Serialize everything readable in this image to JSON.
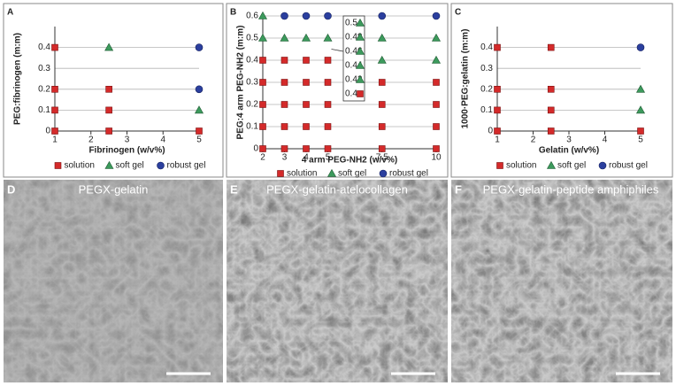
{
  "chart_data": [
    {
      "type": "scatter",
      "panel": "A",
      "x_label": "Fibrinogen (w/v%)",
      "y_label": "PEG:fibrinogen (m:m)",
      "xlim": [
        1,
        5
      ],
      "xticks": [
        1,
        2,
        3,
        4,
        5
      ],
      "ylim": [
        0,
        0.5
      ],
      "yticks": [
        0,
        0.1,
        0.2,
        0.3,
        0.4
      ],
      "grid": true,
      "series": [
        {
          "name": "solution",
          "color": "#d42a2a",
          "marker": "square",
          "x": [
            1,
            1,
            1,
            1,
            2.5,
            2.5,
            2.5,
            5
          ],
          "values": [
            0.4,
            0.2,
            0.1,
            0,
            0.2,
            0.1,
            0,
            0
          ]
        },
        {
          "name": "soft gel",
          "color": "#3c9a5c",
          "marker": "triangle",
          "x": [
            2.5,
            5
          ],
          "values": [
            0.4,
            0.1
          ]
        },
        {
          "name": "robust gel",
          "color": "#2b3f9e",
          "marker": "circle",
          "x": [
            5,
            5
          ],
          "values": [
            0.4,
            0.2
          ]
        }
      ]
    },
    {
      "type": "scatter",
      "panel": "B",
      "x_label": "4 arm PEG-NH2 (w/v%)",
      "y_label": "PEG:4 arm PEG-NH2 (m:m)",
      "xlim": [
        2,
        10
      ],
      "xticks": [
        2,
        3,
        4,
        5,
        7.5,
        10
      ],
      "ylim": [
        0,
        0.6
      ],
      "yticks": [
        0,
        0.1,
        0.2,
        0.3,
        0.4,
        0.5,
        0.6
      ],
      "grid": true,
      "series": [
        {
          "name": "solution",
          "color": "#d42a2a",
          "marker": "square",
          "x": [
            2,
            3,
            4,
            5,
            2,
            3,
            4,
            5,
            7.5,
            10,
            2,
            3,
            4,
            5,
            7.5,
            10,
            2,
            3,
            4,
            5,
            7.5,
            10,
            2,
            3,
            4,
            5,
            7.5,
            10
          ],
          "values": [
            0.4,
            0.4,
            0.4,
            0.4,
            0.3,
            0.3,
            0.3,
            0.3,
            0.3,
            0.3,
            0.2,
            0.2,
            0.2,
            0.2,
            0.2,
            0.2,
            0.1,
            0.1,
            0.1,
            0.1,
            0.1,
            0.1,
            0,
            0,
            0,
            0,
            0,
            0
          ]
        },
        {
          "name": "soft gel",
          "color": "#3c9a5c",
          "marker": "triangle",
          "x": [
            2,
            2,
            3,
            4,
            5,
            7.5,
            10,
            7.5,
            10
          ],
          "values": [
            0.6,
            0.5,
            0.5,
            0.5,
            0.5,
            0.5,
            0.5,
            0.4,
            0.4
          ]
        },
        {
          "name": "robust gel",
          "color": "#2b3f9e",
          "marker": "circle",
          "x": [
            3,
            4,
            5,
            7.5,
            10
          ],
          "values": [
            0.6,
            0.6,
            0.6,
            0.6,
            0.6
          ]
        }
      ],
      "inset": {
        "ylim": [
          0.39,
          0.51
        ],
        "yticks": [
          0.4,
          0.42,
          0.44,
          0.46,
          0.48,
          0.5
        ],
        "solution": [
          0.4
        ],
        "soft_gel": [
          0.42,
          0.44,
          0.46,
          0.48,
          0.5
        ]
      }
    },
    {
      "type": "scatter",
      "panel": "C",
      "x_label": "Gelatin (w/v%)",
      "y_label": "1000·PEG:gelatin (m:m)",
      "xlim": [
        1,
        5
      ],
      "xticks": [
        1,
        2,
        3,
        4,
        5
      ],
      "ylim": [
        0,
        0.5
      ],
      "yticks": [
        0,
        0.1,
        0.2,
        0.3,
        0.4
      ],
      "grid": true,
      "series": [
        {
          "name": "solution",
          "color": "#d42a2a",
          "marker": "square",
          "x": [
            1,
            1,
            1,
            1,
            2.5,
            2.5,
            2.5,
            2.5,
            5
          ],
          "values": [
            0.4,
            0.2,
            0.1,
            0,
            0.4,
            0.2,
            0.1,
            0,
            0
          ]
        },
        {
          "name": "soft gel",
          "color": "#3c9a5c",
          "marker": "triangle",
          "x": [
            5,
            5
          ],
          "values": [
            0.2,
            0.1
          ]
        },
        {
          "name": "robust gel",
          "color": "#2b3f9e",
          "marker": "circle",
          "x": [
            5
          ],
          "values": [
            0.4
          ]
        }
      ]
    }
  ],
  "images": [
    {
      "panel": "D",
      "title": "PEGX-gelatin"
    },
    {
      "panel": "E",
      "title": "PEGX-gelatin-atelocollagen"
    },
    {
      "panel": "F",
      "title": "PEGX-gelatin-peptide amphiphiles"
    }
  ]
}
